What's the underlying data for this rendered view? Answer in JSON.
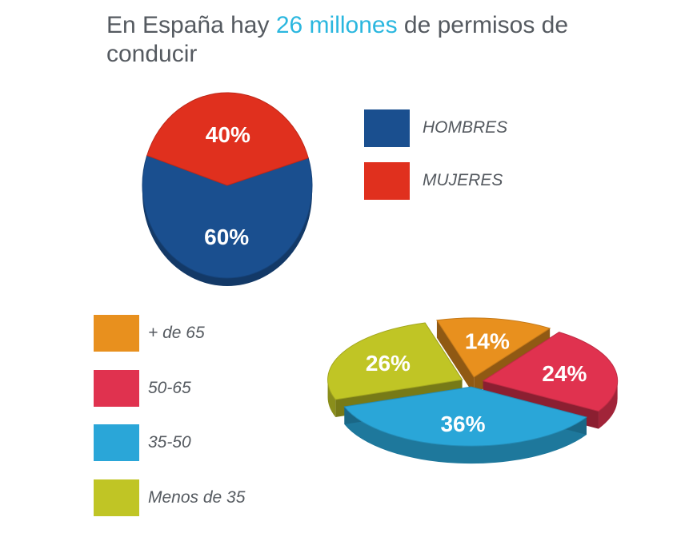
{
  "title": {
    "part1": "En España hay ",
    "highlight": "26 millones",
    "part2": " de permisos de conducir"
  },
  "colors": {
    "title_text": "#555a60",
    "highlight": "#2bb7df",
    "hombres": "#1a4f8f",
    "mujeres": "#e0301e",
    "mas_65": "#e8901e",
    "r50_65": "#e0324f",
    "r35_50": "#2aa6d8",
    "menos_35": "#c0c525"
  },
  "chart_data": [
    {
      "type": "pie",
      "title": "",
      "legend_placement": "right",
      "slices": [
        {
          "label": "HOMBRES",
          "value": 60,
          "value_label": "60%",
          "color": "#1a4f8f"
        },
        {
          "label": "MUJERES",
          "value": 40,
          "value_label": "40%",
          "color": "#e0301e"
        }
      ]
    },
    {
      "type": "pie",
      "title": "",
      "legend_placement": "left",
      "slices": [
        {
          "label": "+ de 65",
          "value": 14,
          "value_label": "14%",
          "color": "#e8901e"
        },
        {
          "label": "50-65",
          "value": 24,
          "value_label": "24%",
          "color": "#e0324f"
        },
        {
          "label": "35-50",
          "value": 36,
          "value_label": "36%",
          "color": "#2aa6d8"
        },
        {
          "label": "Menos de 35",
          "value": 26,
          "value_label": "26%",
          "color": "#c0c525"
        }
      ]
    }
  ]
}
